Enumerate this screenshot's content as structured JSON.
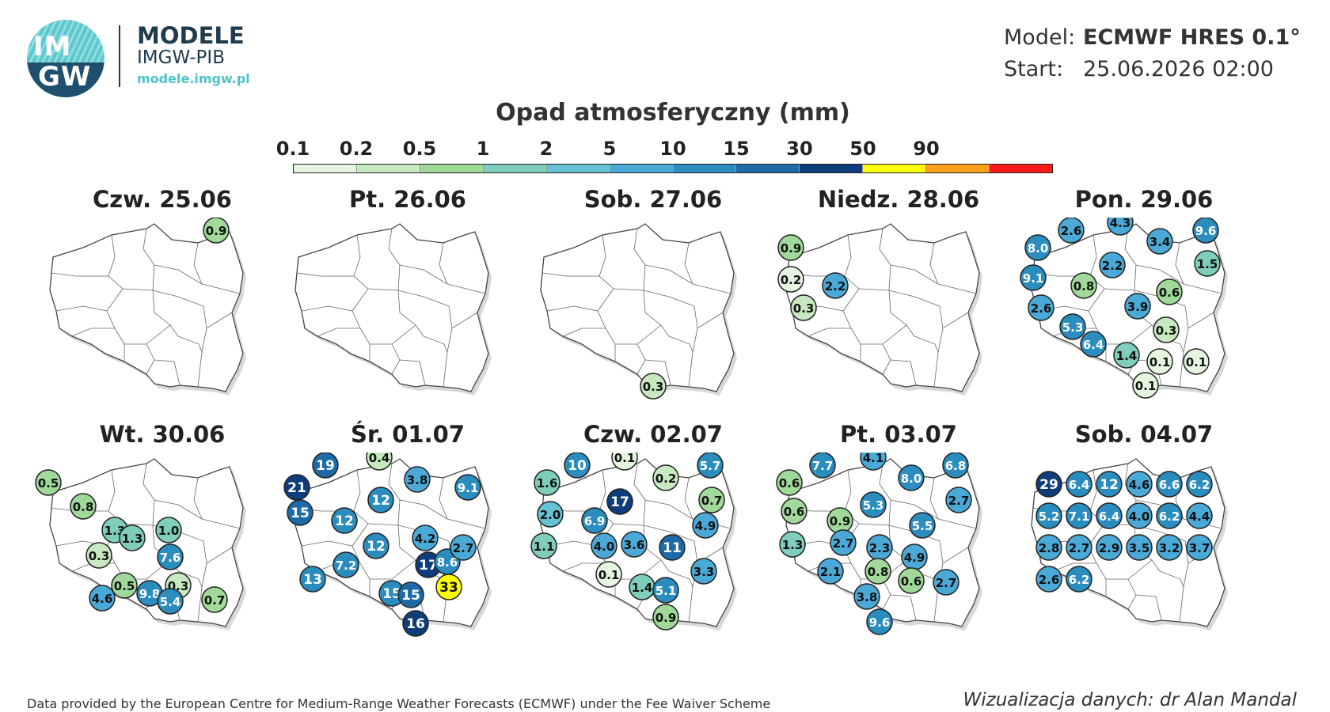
{
  "logo": {
    "line1": "IM",
    "line2": "GW"
  },
  "brand": {
    "name": "MODELE",
    "org": "IMGW-PIB",
    "url": "modele.imgw.pl"
  },
  "model": {
    "label": "Model:",
    "value": "ECMWF HRES 0.1°"
  },
  "start": {
    "label": "Start:",
    "value": "25.06.2026 02:00"
  },
  "legend": {
    "title": "Opad atmosferyczny (mm)",
    "ticks": [
      "0.1",
      "0.2",
      "0.5",
      "1",
      "2",
      "5",
      "10",
      "15",
      "30",
      "50",
      "90"
    ],
    "colors": [
      "#e5f5e0",
      "#c7e9c0",
      "#a1d99b",
      "#7fcdbb",
      "#66c2d4",
      "#4aa9d6",
      "#2b8cbe",
      "#1c6aa8",
      "#0d3d7a",
      "#ffff00",
      "#ff9f1c",
      "#ff1a1a"
    ]
  },
  "days": [
    {
      "label": "Czw. 25.06",
      "values": [
        {
          "v": "0.9",
          "c": "#a1d99b"
        }
      ]
    },
    {
      "label": "Pt. 26.06",
      "values": []
    },
    {
      "label": "Sob. 27.06",
      "values": [
        {
          "v": "0.3",
          "c": "#c7e9c0"
        }
      ]
    },
    {
      "label": "Niedz. 28.06",
      "values": [
        {
          "v": "0.9",
          "c": "#a1d99b"
        },
        {
          "v": "0.2",
          "c": "#e5f5e0"
        },
        {
          "v": "2.2",
          "c": "#4aa9d6"
        },
        {
          "v": "0.3",
          "c": "#c7e9c0"
        }
      ]
    },
    {
      "label": "Pon. 29.06",
      "values": [
        {
          "v": "2.6",
          "c": "#4aa9d6"
        },
        {
          "v": "4.3",
          "c": "#4aa9d6"
        },
        {
          "v": "9.6",
          "c": "#2b8cbe"
        },
        {
          "v": "8.0",
          "c": "#2b8cbe"
        },
        {
          "v": "3.4",
          "c": "#4aa9d6"
        },
        {
          "v": "1.5",
          "c": "#7fcdbb"
        },
        {
          "v": "2.2",
          "c": "#4aa9d6"
        },
        {
          "v": "9.1",
          "c": "#2b8cbe"
        },
        {
          "v": "0.8",
          "c": "#a1d99b"
        },
        {
          "v": "0.6",
          "c": "#a1d99b"
        },
        {
          "v": "2.6",
          "c": "#4aa9d6"
        },
        {
          "v": "3.9",
          "c": "#4aa9d6"
        },
        {
          "v": "5.3",
          "c": "#2b8cbe"
        },
        {
          "v": "0.3",
          "c": "#c7e9c0"
        },
        {
          "v": "6.4",
          "c": "#2b8cbe"
        },
        {
          "v": "1.4",
          "c": "#7fcdbb"
        },
        {
          "v": "0.1",
          "c": "#e5f5e0"
        },
        {
          "v": "0.1",
          "c": "#e5f5e0"
        },
        {
          "v": "0.1",
          "c": "#e5f5e0"
        }
      ]
    },
    {
      "label": "Wt. 30.06",
      "values": [
        {
          "v": "0.5",
          "c": "#a1d99b"
        },
        {
          "v": "0.8",
          "c": "#a1d99b"
        },
        {
          "v": "1.3",
          "c": "#7fcdbb"
        },
        {
          "v": "1.0",
          "c": "#7fcdbb"
        },
        {
          "v": "1.3",
          "c": "#7fcdbb"
        },
        {
          "v": "0.3",
          "c": "#c7e9c0"
        },
        {
          "v": "7.6",
          "c": "#2b8cbe"
        },
        {
          "v": "0.3",
          "c": "#c7e9c0"
        },
        {
          "v": "0.5",
          "c": "#a1d99b"
        },
        {
          "v": "9.8",
          "c": "#2b8cbe"
        },
        {
          "v": "4.6",
          "c": "#4aa9d6"
        },
        {
          "v": "0.7",
          "c": "#a1d99b"
        },
        {
          "v": "5.4",
          "c": "#2b8cbe"
        }
      ]
    },
    {
      "label": "Śr. 01.07",
      "values": [
        {
          "v": "19",
          "c": "#1c6aa8"
        },
        {
          "v": "0.4",
          "c": "#c7e9c0"
        },
        {
          "v": "21",
          "c": "#0d3d7a"
        },
        {
          "v": "3.8",
          "c": "#4aa9d6"
        },
        {
          "v": "9.1",
          "c": "#2b8cbe"
        },
        {
          "v": "15",
          "c": "#1c6aa8"
        },
        {
          "v": "12",
          "c": "#2b8cbe"
        },
        {
          "v": "12",
          "c": "#2b8cbe"
        },
        {
          "v": "12",
          "c": "#2b8cbe"
        },
        {
          "v": "4.2",
          "c": "#4aa9d6"
        },
        {
          "v": "17",
          "c": "#0d3d7a"
        },
        {
          "v": "7.2",
          "c": "#2b8cbe"
        },
        {
          "v": "15",
          "c": "#2b8cbe"
        },
        {
          "v": "8.6",
          "c": "#2b8cbe"
        },
        {
          "v": "15",
          "c": "#1c6aa8"
        },
        {
          "v": "33",
          "c": "#ffff00"
        },
        {
          "v": "16",
          "c": "#0d3d7a"
        },
        {
          "v": "2.7",
          "c": "#4aa9d6"
        },
        {
          "v": "13",
          "c": "#2b8cbe"
        }
      ]
    },
    {
      "label": "Czw. 02.07",
      "values": [
        {
          "v": "10",
          "c": "#2b8cbe"
        },
        {
          "v": "0.1",
          "c": "#e5f5e0"
        },
        {
          "v": "5.7",
          "c": "#2b8cbe"
        },
        {
          "v": "1.6",
          "c": "#7fcdbb"
        },
        {
          "v": "0.2",
          "c": "#c7e9c0"
        },
        {
          "v": "17",
          "c": "#0d3d7a"
        },
        {
          "v": "0.7",
          "c": "#a1d99b"
        },
        {
          "v": "2.0",
          "c": "#66c2d4"
        },
        {
          "v": "6.9",
          "c": "#2b8cbe"
        },
        {
          "v": "4.9",
          "c": "#4aa9d6"
        },
        {
          "v": "3.6",
          "c": "#4aa9d6"
        },
        {
          "v": "1.1",
          "c": "#7fcdbb"
        },
        {
          "v": "11",
          "c": "#1c6aa8"
        },
        {
          "v": "4.0",
          "c": "#4aa9d6"
        },
        {
          "v": "0.1",
          "c": "#e5f5e0"
        },
        {
          "v": "1.4",
          "c": "#7fcdbb"
        },
        {
          "v": "3.3",
          "c": "#4aa9d6"
        },
        {
          "v": "5.1",
          "c": "#2b8cbe"
        },
        {
          "v": "0.9",
          "c": "#a1d99b"
        }
      ]
    },
    {
      "label": "Pt. 03.07",
      "values": [
        {
          "v": "7.7",
          "c": "#2b8cbe"
        },
        {
          "v": "4.1",
          "c": "#4aa9d6"
        },
        {
          "v": "6.8",
          "c": "#2b8cbe"
        },
        {
          "v": "0.6",
          "c": "#a1d99b"
        },
        {
          "v": "8.0",
          "c": "#2b8cbe"
        },
        {
          "v": "2.7",
          "c": "#4aa9d6"
        },
        {
          "v": "5.3",
          "c": "#2b8cbe"
        },
        {
          "v": "0.6",
          "c": "#a1d99b"
        },
        {
          "v": "0.9",
          "c": "#a1d99b"
        },
        {
          "v": "5.5",
          "c": "#2b8cbe"
        },
        {
          "v": "1.3",
          "c": "#7fcdbb"
        },
        {
          "v": "2.7",
          "c": "#4aa9d6"
        },
        {
          "v": "2.3",
          "c": "#4aa9d6"
        },
        {
          "v": "4.9",
          "c": "#4aa9d6"
        },
        {
          "v": "2.1",
          "c": "#4aa9d6"
        },
        {
          "v": "0.8",
          "c": "#a1d99b"
        },
        {
          "v": "0.6",
          "c": "#a1d99b"
        },
        {
          "v": "2.7",
          "c": "#4aa9d6"
        },
        {
          "v": "3.8",
          "c": "#4aa9d6"
        },
        {
          "v": "9.6",
          "c": "#2b8cbe"
        }
      ]
    },
    {
      "label": "Sob. 04.07",
      "values": [
        {
          "v": "29",
          "c": "#0d3d7a"
        },
        {
          "v": "6.4",
          "c": "#2b8cbe"
        },
        {
          "v": "12",
          "c": "#2b8cbe"
        },
        {
          "v": "4.6",
          "c": "#4aa9d6"
        },
        {
          "v": "6.6",
          "c": "#2b8cbe"
        },
        {
          "v": "6.2",
          "c": "#2b8cbe"
        },
        {
          "v": "5.2",
          "c": "#2b8cbe"
        },
        {
          "v": "7.1",
          "c": "#2b8cbe"
        },
        {
          "v": "6.4",
          "c": "#2b8cbe"
        },
        {
          "v": "4.0",
          "c": "#4aa9d6"
        },
        {
          "v": "6.2",
          "c": "#2b8cbe"
        },
        {
          "v": "4.4",
          "c": "#4aa9d6"
        },
        {
          "v": "2.8",
          "c": "#4aa9d6"
        },
        {
          "v": "2.7",
          "c": "#4aa9d6"
        },
        {
          "v": "2.9",
          "c": "#4aa9d6"
        },
        {
          "v": "3.5",
          "c": "#4aa9d6"
        },
        {
          "v": "3.2",
          "c": "#4aa9d6"
        },
        {
          "v": "3.7",
          "c": "#4aa9d6"
        },
        {
          "v": "2.6",
          "c": "#4aa9d6"
        },
        {
          "v": "6.2",
          "c": "#2b8cbe"
        }
      ]
    }
  ],
  "footer": {
    "source": "Data provided by the European Centre for Medium-Range Weather Forecasts (ECMWF) under the Fee Waiver Scheme",
    "author": "Wizualizacja danych: dr Alan Mandal"
  }
}
